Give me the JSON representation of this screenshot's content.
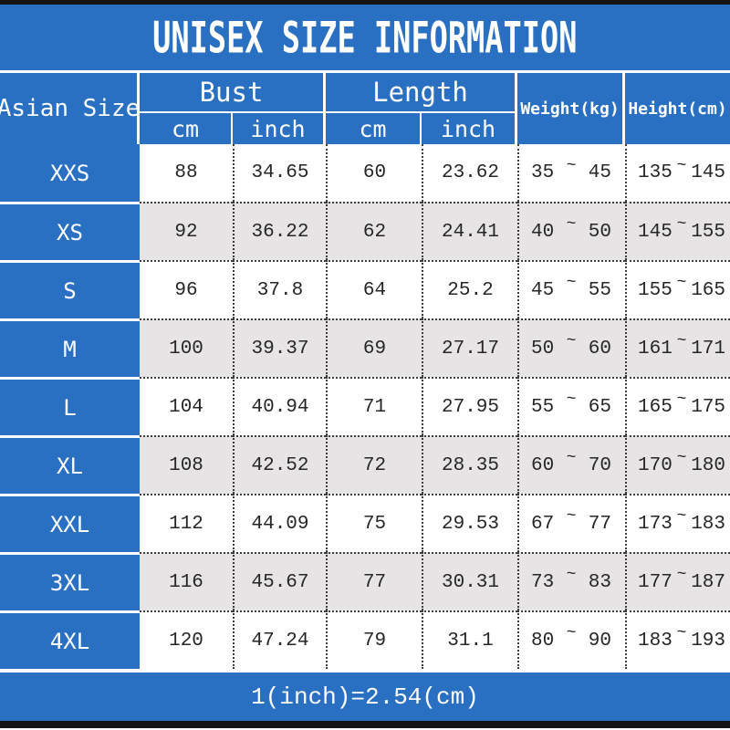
{
  "colors": {
    "accent_blue": "#2a70c2",
    "alt_row_gray": "#e6e4e5",
    "top_bottom_bar": "#141414",
    "text_dark": "#262626",
    "header_text": "#ffffff"
  },
  "chart_data": {
    "type": "table",
    "title": "UNISEX SIZE INFORMATION",
    "footnote": "1(inch)=2.54(cm)",
    "corner_header": "Asian Size",
    "column_groups": [
      {
        "label": "Bust",
        "children": [
          "cm",
          "inch"
        ]
      },
      {
        "label": "Length",
        "children": [
          "cm",
          "inch"
        ]
      }
    ],
    "weight_header": "Weight(kg)",
    "height_header": "Height(cm)",
    "tilde": "~",
    "rows": [
      {
        "size": "XXS",
        "bust_cm": "88",
        "bust_inch": "34.65",
        "length_cm": "60",
        "length_inch": "23.62",
        "weight_min": "35",
        "weight_max": "45",
        "height_min": "135",
        "height_max": "145"
      },
      {
        "size": "XS",
        "bust_cm": "92",
        "bust_inch": "36.22",
        "length_cm": "62",
        "length_inch": "24.41",
        "weight_min": "40",
        "weight_max": "50",
        "height_min": "145",
        "height_max": "155"
      },
      {
        "size": "S",
        "bust_cm": "96",
        "bust_inch": "37.8",
        "length_cm": "64",
        "length_inch": "25.2",
        "weight_min": "45",
        "weight_max": "55",
        "height_min": "155",
        "height_max": "165"
      },
      {
        "size": "M",
        "bust_cm": "100",
        "bust_inch": "39.37",
        "length_cm": "69",
        "length_inch": "27.17",
        "weight_min": "50",
        "weight_max": "60",
        "height_min": "161",
        "height_max": "171"
      },
      {
        "size": "L",
        "bust_cm": "104",
        "bust_inch": "40.94",
        "length_cm": "71",
        "length_inch": "27.95",
        "weight_min": "55",
        "weight_max": "65",
        "height_min": "165",
        "height_max": "175"
      },
      {
        "size": "XL",
        "bust_cm": "108",
        "bust_inch": "42.52",
        "length_cm": "72",
        "length_inch": "28.35",
        "weight_min": "60",
        "weight_max": "70",
        "height_min": "170",
        "height_max": "180"
      },
      {
        "size": "XXL",
        "bust_cm": "112",
        "bust_inch": "44.09",
        "length_cm": "75",
        "length_inch": "29.53",
        "weight_min": "67",
        "weight_max": "77",
        "height_min": "173",
        "height_max": "183"
      },
      {
        "size": "3XL",
        "bust_cm": "116",
        "bust_inch": "45.67",
        "length_cm": "77",
        "length_inch": "30.31",
        "weight_min": "73",
        "weight_max": "83",
        "height_min": "177",
        "height_max": "187"
      },
      {
        "size": "4XL",
        "bust_cm": "120",
        "bust_inch": "47.24",
        "length_cm": "79",
        "length_inch": "31.1",
        "weight_min": "80",
        "weight_max": "90",
        "height_min": "183",
        "height_max": "193"
      }
    ]
  }
}
